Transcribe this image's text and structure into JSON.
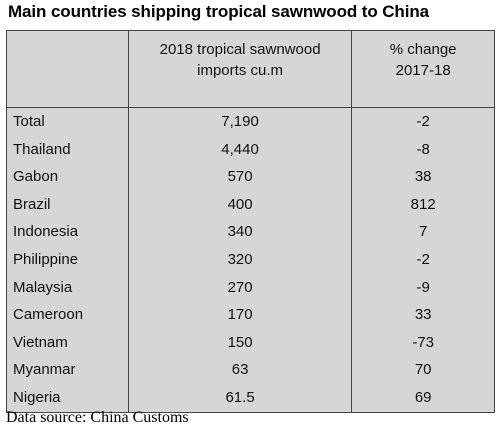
{
  "chart_data": {
    "type": "table",
    "title": "Main countries shipping tropical sawnwood to China",
    "columns": [
      "",
      "2018 tropical sawnwood imports cu.m",
      "% change 2017-18"
    ],
    "header_lines": {
      "col2": [
        "2018 tropical sawnwood",
        "imports cu.m"
      ],
      "col3": [
        "% change",
        "2017-18"
      ]
    },
    "rows": [
      {
        "country": "Total",
        "imports": "7,190",
        "change": "-2"
      },
      {
        "country": "Thailand",
        "imports": "4,440",
        "change": "-8"
      },
      {
        "country": "Gabon",
        "imports": "570",
        "change": "38"
      },
      {
        "country": "Brazil",
        "imports": "400",
        "change": "812"
      },
      {
        "country": "Indonesia",
        "imports": "340",
        "change": "7"
      },
      {
        "country": "Philippine",
        "imports": "320",
        "change": "-2"
      },
      {
        "country": "Malaysia",
        "imports": "270",
        "change": "-9"
      },
      {
        "country": "Cameroon",
        "imports": "170",
        "change": "33"
      },
      {
        "country": "Vietnam",
        "imports": "150",
        "change": "-73"
      },
      {
        "country": "Myanmar",
        "imports": "63",
        "change": "70"
      },
      {
        "country": "Nigeria",
        "imports": "61.5",
        "change": "69"
      }
    ],
    "source": "Data source: China Customs"
  },
  "colors": {
    "table_background": "#d6d6d6",
    "border": "#444444"
  }
}
